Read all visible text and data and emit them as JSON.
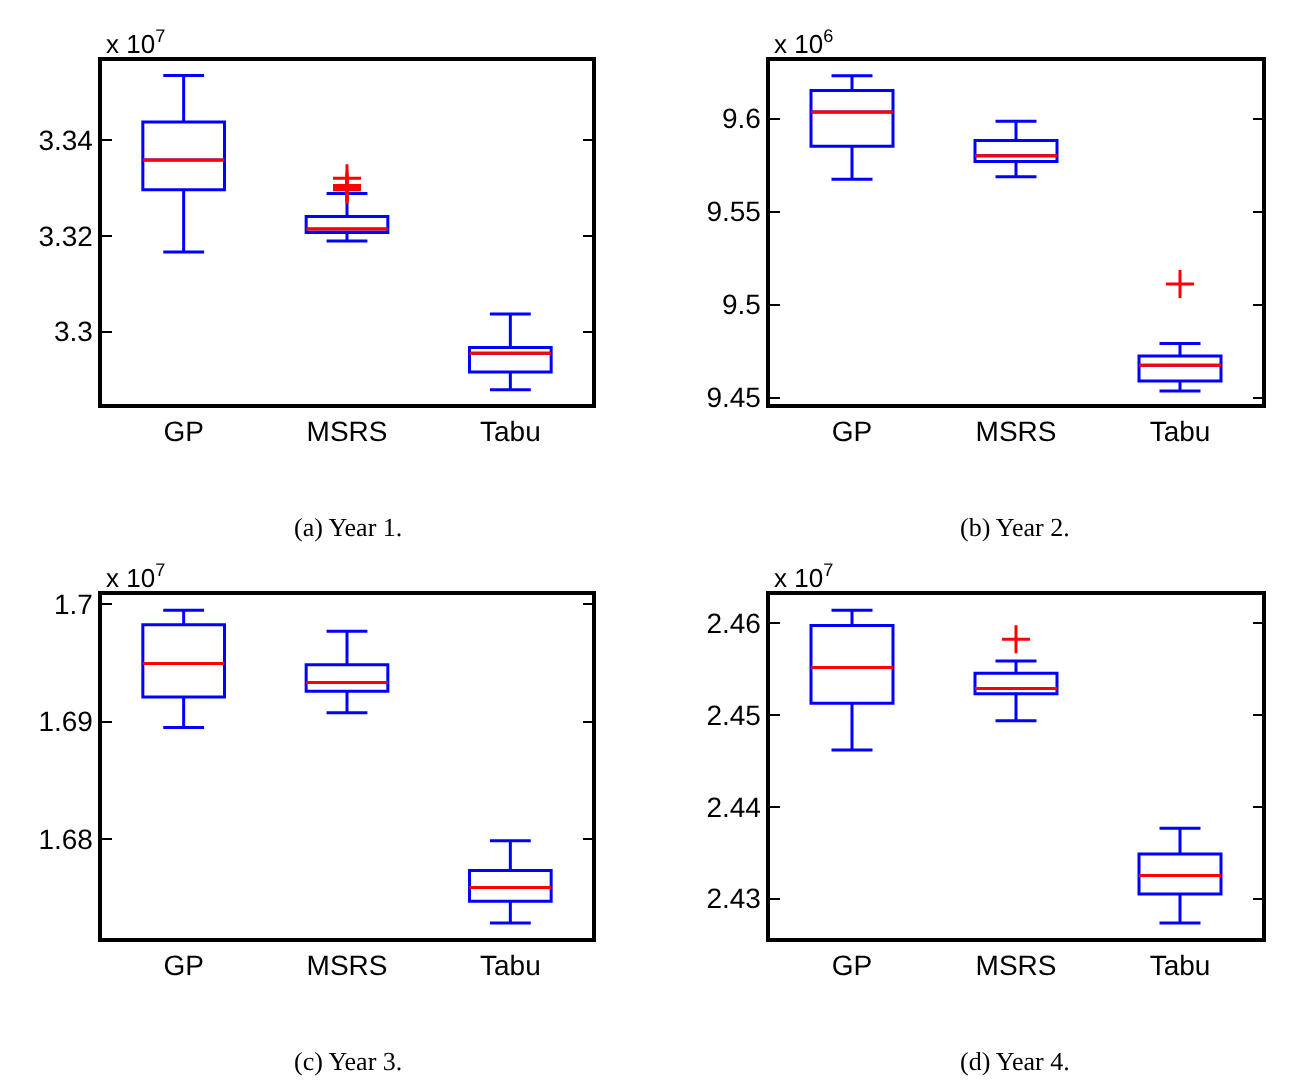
{
  "chart_data": [
    {
      "type": "box",
      "title": "(a) Year 1.",
      "annotations": [
        "x 10$^{7}$"
      ],
      "categories": [
        "GP",
        "MSRS",
        "Tabu"
      ],
      "ylim": [
        3.2849,
        3.3564
      ],
      "yticks": [
        3.3,
        3.32,
        3.34
      ],
      "series": [
        {
          "color": "#0000ff",
          "boxes": [
            {
              "low": 3.3166,
              "q1": 3.3296,
              "median": 3.3358,
              "q3": 3.3437,
              "high": 3.3534
            },
            {
              "low": 3.3189,
              "q1": 3.3207,
              "median": 3.3214,
              "q3": 3.324,
              "high": 3.3288,
              "outliers": [
                3.3296,
                3.33,
                3.3305,
                3.332
              ]
            },
            {
              "low": 3.2879,
              "q1": 3.2916,
              "median": 3.2955,
              "q3": 3.2967,
              "high": 3.3037
            }
          ]
        }
      ]
    },
    {
      "type": "box",
      "title": "(b) Year 2.",
      "annotations": [
        "x 10$^{6}$"
      ],
      "categories": [
        "GP",
        "MSRS",
        "Tabu"
      ],
      "ylim": [
        9.4465,
        9.6309
      ],
      "yticks": [
        9.45,
        9.5,
        9.55,
        9.6
      ],
      "series": [
        {
          "color": "#0000ff",
          "boxes": [
            {
              "low": 9.5674,
              "q1": 9.5851,
              "median": 9.6035,
              "q3": 9.6152,
              "high": 9.6231
            },
            {
              "low": 9.5688,
              "q1": 9.577,
              "median": 9.5801,
              "q3": 9.5883,
              "high": 9.5986
            },
            {
              "low": 9.4535,
              "q1": 9.4589,
              "median": 9.4674,
              "q3": 9.4723,
              "high": 9.4791,
              "outliers": [
                9.511
              ]
            }
          ]
        }
      ]
    },
    {
      "type": "box",
      "title": "(c) Year 3.",
      "annotations": [
        "x 10$^{7}$"
      ],
      "categories": [
        "GP",
        "MSRS",
        "Tabu"
      ],
      "ylim": [
        1.67154,
        1.70078
      ],
      "yticks": [
        1.68,
        1.69,
        {
          "value": 1.7,
          "label": "1.7"
        }
      ],
      "series": [
        {
          "color": "#0000ff",
          "boxes": [
            {
              "low": 1.6895,
              "q1": 1.6921,
              "median": 1.69496,
              "q3": 1.69826,
              "high": 1.6995
            },
            {
              "low": 1.69076,
              "q1": 1.6926,
              "median": 1.69333,
              "q3": 1.69484,
              "high": 1.6977
            },
            {
              "low": 1.67283,
              "q1": 1.67468,
              "median": 1.67585,
              "q3": 1.67731,
              "high": 1.67983
            }
          ]
        }
      ]
    },
    {
      "type": "box",
      "title": "(d) Year 4.",
      "annotations": [
        "x 10$^{7}$"
      ],
      "categories": [
        "GP",
        "MSRS",
        "Tabu"
      ],
      "ylim": [
        2.4257,
        2.46308
      ],
      "yticks": [
        2.43,
        2.44,
        2.45,
        2.46
      ],
      "series": [
        {
          "color": "#0000ff",
          "boxes": [
            {
              "low": 2.4462,
              "q1": 2.45129,
              "median": 2.4552,
              "q3": 2.45979,
              "high": 2.46143
            },
            {
              "low": 2.4494,
              "q1": 2.45234,
              "median": 2.45292,
              "q3": 2.45456,
              "high": 2.45592,
              "outliers": [
                2.45828
              ]
            },
            {
              "low": 2.42735,
              "q1": 2.4305,
              "median": 2.43252,
              "q3": 2.43487,
              "high": 2.43767
            }
          ]
        }
      ]
    }
  ]
}
